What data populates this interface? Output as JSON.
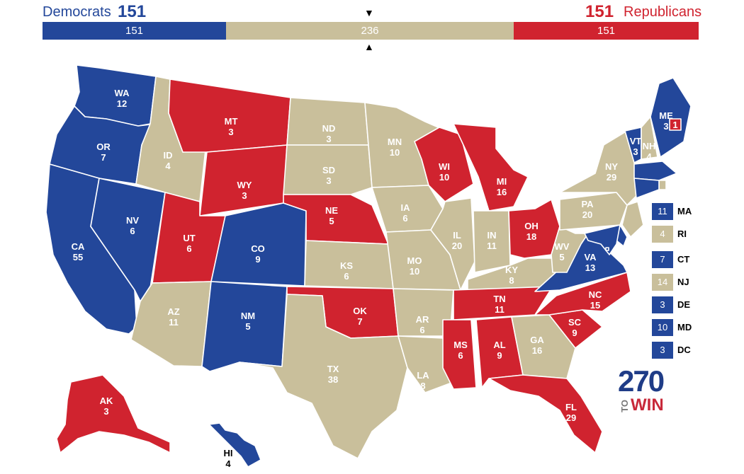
{
  "header": {
    "dem_name": "Democrats",
    "dem_total": "151",
    "rep_total": "151",
    "rep_name": "Republicans",
    "bar": {
      "dem": "151",
      "tossup": "236",
      "rep": "151"
    },
    "marker_top": "▼",
    "marker_bottom": "▲"
  },
  "colors": {
    "dem": "#23479a",
    "rep": "#d0232f",
    "tossup": "#c9bf9b"
  },
  "states": [
    {
      "abbr": "WA",
      "ev": "12",
      "party": "dem"
    },
    {
      "abbr": "OR",
      "ev": "7",
      "party": "dem"
    },
    {
      "abbr": "CA",
      "ev": "55",
      "party": "dem"
    },
    {
      "abbr": "NV",
      "ev": "6",
      "party": "dem"
    },
    {
      "abbr": "ID",
      "ev": "4",
      "party": "tossup"
    },
    {
      "abbr": "MT",
      "ev": "3",
      "party": "rep"
    },
    {
      "abbr": "WY",
      "ev": "3",
      "party": "rep"
    },
    {
      "abbr": "UT",
      "ev": "6",
      "party": "rep"
    },
    {
      "abbr": "AZ",
      "ev": "11",
      "party": "tossup"
    },
    {
      "abbr": "CO",
      "ev": "9",
      "party": "dem"
    },
    {
      "abbr": "NM",
      "ev": "5",
      "party": "dem"
    },
    {
      "abbr": "ND",
      "ev": "3",
      "party": "tossup"
    },
    {
      "abbr": "SD",
      "ev": "3",
      "party": "tossup"
    },
    {
      "abbr": "NE",
      "ev": "5",
      "party": "rep"
    },
    {
      "abbr": "KS",
      "ev": "6",
      "party": "tossup"
    },
    {
      "abbr": "OK",
      "ev": "7",
      "party": "rep"
    },
    {
      "abbr": "TX",
      "ev": "38",
      "party": "tossup"
    },
    {
      "abbr": "MN",
      "ev": "10",
      "party": "tossup"
    },
    {
      "abbr": "IA",
      "ev": "6",
      "party": "tossup"
    },
    {
      "abbr": "MO",
      "ev": "10",
      "party": "tossup"
    },
    {
      "abbr": "AR",
      "ev": "6",
      "party": "tossup"
    },
    {
      "abbr": "LA",
      "ev": "8",
      "party": "tossup"
    },
    {
      "abbr": "WI",
      "ev": "10",
      "party": "rep"
    },
    {
      "abbr": "IL",
      "ev": "20",
      "party": "tossup"
    },
    {
      "abbr": "MI",
      "ev": "16",
      "party": "rep"
    },
    {
      "abbr": "IN",
      "ev": "11",
      "party": "tossup"
    },
    {
      "abbr": "OH",
      "ev": "18",
      "party": "rep"
    },
    {
      "abbr": "KY",
      "ev": "8",
      "party": "tossup"
    },
    {
      "abbr": "TN",
      "ev": "11",
      "party": "rep"
    },
    {
      "abbr": "MS",
      "ev": "6",
      "party": "rep"
    },
    {
      "abbr": "AL",
      "ev": "9",
      "party": "rep"
    },
    {
      "abbr": "GA",
      "ev": "16",
      "party": "tossup"
    },
    {
      "abbr": "FL",
      "ev": "29",
      "party": "rep"
    },
    {
      "abbr": "SC",
      "ev": "9",
      "party": "rep"
    },
    {
      "abbr": "NC",
      "ev": "15",
      "party": "rep"
    },
    {
      "abbr": "VA",
      "ev": "13",
      "party": "dem"
    },
    {
      "abbr": "WV",
      "ev": "5",
      "party": "tossup"
    },
    {
      "abbr": "PA",
      "ev": "20",
      "party": "tossup"
    },
    {
      "abbr": "NY",
      "ev": "29",
      "party": "tossup"
    },
    {
      "abbr": "VT",
      "ev": "3",
      "party": "dem"
    },
    {
      "abbr": "NH",
      "ev": "4",
      "party": "tossup"
    },
    {
      "abbr": "ME",
      "ev": "3",
      "party": "dem"
    },
    {
      "abbr": "ME-CD2",
      "ev": "1",
      "party": "rep"
    },
    {
      "abbr": "AK",
      "ev": "3",
      "party": "rep"
    },
    {
      "abbr": "HI",
      "ev": "4",
      "party": "dem"
    }
  ],
  "legend": [
    {
      "ev": "11",
      "abbr": "MA",
      "party": "dem"
    },
    {
      "ev": "4",
      "abbr": "RI",
      "party": "tossup"
    },
    {
      "ev": "7",
      "abbr": "CT",
      "party": "dem"
    },
    {
      "ev": "14",
      "abbr": "NJ",
      "party": "tossup"
    },
    {
      "ev": "3",
      "abbr": "DE",
      "party": "dem"
    },
    {
      "ev": "10",
      "abbr": "MD",
      "party": "dem"
    },
    {
      "ev": "3",
      "abbr": "DC",
      "party": "dem"
    }
  ],
  "logo": {
    "number": "270",
    "to": "TO",
    "win": "WIN"
  }
}
